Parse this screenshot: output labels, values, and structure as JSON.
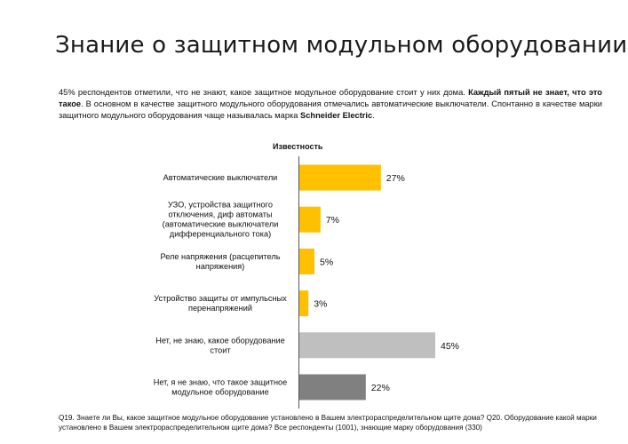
{
  "title": "Знание о защитном модульном оборудовании",
  "summary": {
    "part1": "45% респондентов отметили, что не знают, какое защитное модульное оборудование стоит у них дома. ",
    "bold1": "Каждый пятый не знает, что это такое",
    "part2": ". В основном в качестве защитного модульного оборудования отмечались автоматические выключатели. Спонтанно в качестве марки защитного модульного оборудования чаще называлась марка ",
    "bold2": "Schneider Electric",
    "part3": "."
  },
  "chart_heading": "Известность",
  "chart_data": {
    "type": "bar",
    "orientation": "horizontal",
    "categories": [
      [
        "Автоматические выключатели"
      ],
      [
        "УЗО, устройства защитного",
        "отключения, диф автоматы",
        "(автоматические выключатели",
        "дифференциального тока)"
      ],
      [
        "Реле напряжения (расцепитель",
        "напряжения)"
      ],
      [
        "Устройство защиты от импульсных",
        "перенапряжений"
      ],
      [
        "Нет, не знаю, какое оборудование",
        "стоит"
      ],
      [
        "Нет, я не знаю, что такое защитное",
        "модульное оборудование"
      ]
    ],
    "values": [
      27,
      7,
      5,
      3,
      45,
      22
    ],
    "value_labels": [
      "27%",
      "7%",
      "5%",
      "3%",
      "45%",
      "22%"
    ],
    "colors": [
      "#ffc000",
      "#ffc000",
      "#ffc000",
      "#ffc000",
      "#bfbfbf",
      "#808080"
    ],
    "unit": "%"
  },
  "footnote": "Q19. Знаете ли Вы, какое защитное модульное оборудование установлено в Вашем электрораспределительном щите дома? Q20. Оборудование какой марки установлено в Вашем электрораспределительном щите дома? Все респонденты (1001), знающие марку оборудования (330)"
}
